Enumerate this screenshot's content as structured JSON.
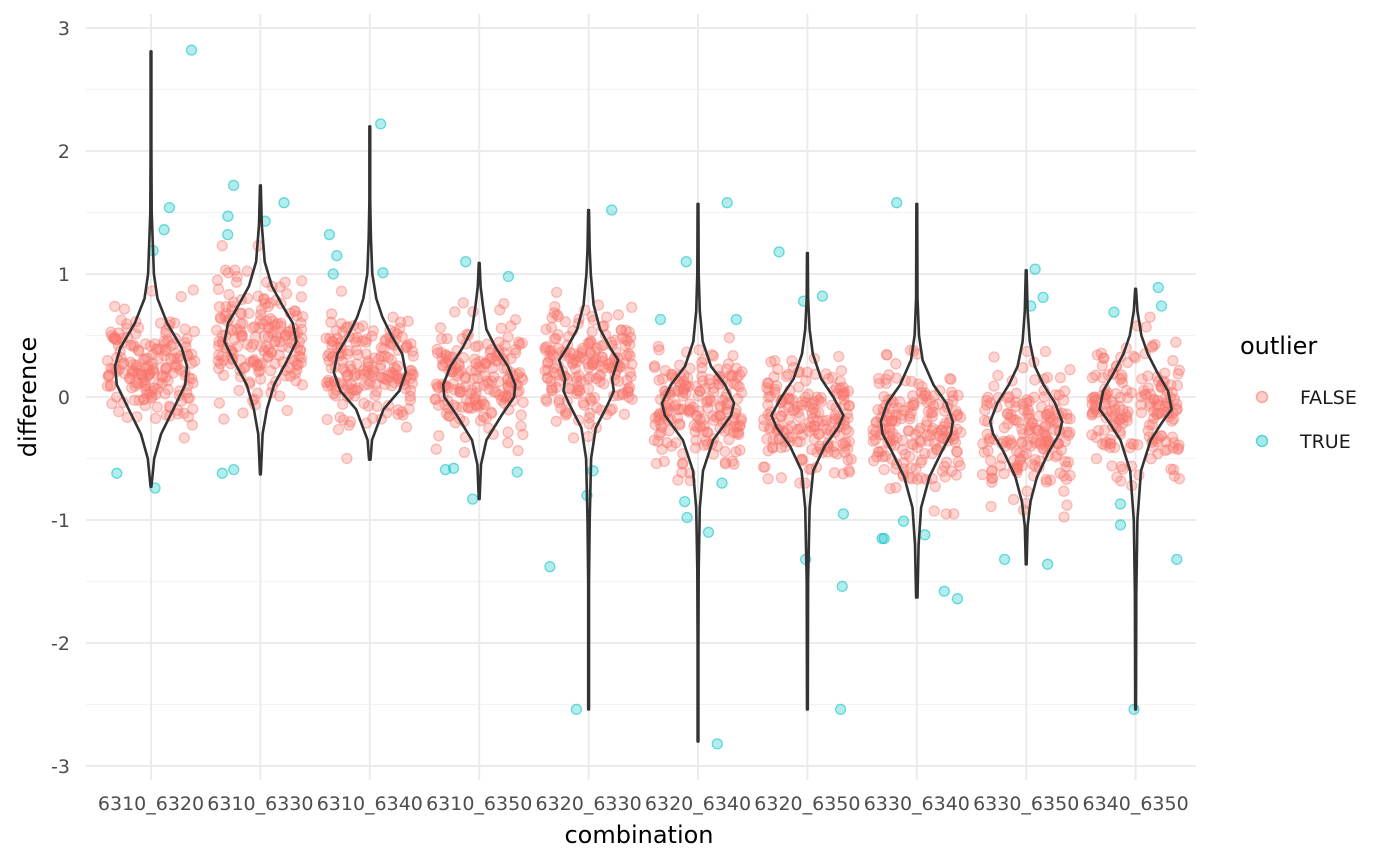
{
  "chart_data": {
    "type": "scatter",
    "subtype": "violin-with-jittered-points",
    "title": "",
    "xlabel": "combination",
    "ylabel": "difference",
    "categories": [
      "6310_6320",
      "6310_6330",
      "6310_6340",
      "6310_6350",
      "6320_6330",
      "6320_6340",
      "6320_6350",
      "6330_6340",
      "6330_6350",
      "6340_6350"
    ],
    "ylim": [
      -3.07,
      3.07
    ],
    "yticks": [
      -3,
      -2,
      -1,
      0,
      1,
      2,
      3
    ],
    "ytick_labels": [
      "-3",
      "-2",
      "-1",
      "0",
      "1",
      "2",
      "3"
    ],
    "grid": true,
    "legend": {
      "title": "outlier",
      "position": "right",
      "entries": [
        {
          "label": "FALSE",
          "color": "#F8766D"
        },
        {
          "label": "TRUE",
          "color": "#00BFC4"
        }
      ]
    },
    "violins": [
      {
        "category": "6310_6320",
        "min": -0.73,
        "max": 2.81,
        "shape": [
          [
            -0.73,
            0.01
          ],
          [
            -0.5,
            0.09
          ],
          [
            -0.3,
            0.28
          ],
          [
            -0.1,
            0.62
          ],
          [
            0.1,
            0.95
          ],
          [
            0.25,
            1.0
          ],
          [
            0.4,
            0.85
          ],
          [
            0.6,
            0.45
          ],
          [
            0.8,
            0.18
          ],
          [
            1.0,
            0.08
          ],
          [
            1.5,
            0.02
          ],
          [
            2.0,
            0.01
          ],
          [
            2.81,
            0.01
          ]
        ]
      },
      {
        "category": "6310_6330",
        "min": -0.63,
        "max": 1.72,
        "shape": [
          [
            -0.63,
            0.01
          ],
          [
            -0.3,
            0.06
          ],
          [
            -0.1,
            0.18
          ],
          [
            0.1,
            0.38
          ],
          [
            0.3,
            0.75
          ],
          [
            0.45,
            1.0
          ],
          [
            0.6,
            0.9
          ],
          [
            0.75,
            0.6
          ],
          [
            0.9,
            0.32
          ],
          [
            1.1,
            0.12
          ],
          [
            1.4,
            0.04
          ],
          [
            1.72,
            0.01
          ]
        ]
      },
      {
        "category": "6310_6340",
        "min": -0.51,
        "max": 2.2,
        "shape": [
          [
            -0.51,
            0.02
          ],
          [
            -0.35,
            0.06
          ],
          [
            -0.1,
            0.38
          ],
          [
            0.05,
            0.82
          ],
          [
            0.2,
            1.0
          ],
          [
            0.35,
            0.9
          ],
          [
            0.5,
            0.6
          ],
          [
            0.65,
            0.35
          ],
          [
            0.8,
            0.18
          ],
          [
            1.0,
            0.07
          ],
          [
            1.3,
            0.03
          ],
          [
            1.6,
            0.01
          ],
          [
            2.2,
            0.01
          ]
        ]
      },
      {
        "category": "6310_6350",
        "min": -0.83,
        "max": 1.09,
        "shape": [
          [
            -0.83,
            0.01
          ],
          [
            -0.55,
            0.05
          ],
          [
            -0.35,
            0.2
          ],
          [
            -0.15,
            0.62
          ],
          [
            0.0,
            0.97
          ],
          [
            0.1,
            1.0
          ],
          [
            0.25,
            0.8
          ],
          [
            0.4,
            0.46
          ],
          [
            0.55,
            0.2
          ],
          [
            0.75,
            0.1
          ],
          [
            0.9,
            0.04
          ],
          [
            1.09,
            0.01
          ]
        ]
      },
      {
        "category": "6320_6330",
        "min": -2.54,
        "max": 1.52,
        "shape": [
          [
            -2.54,
            0.01
          ],
          [
            -1.5,
            0.01
          ],
          [
            -1.0,
            0.03
          ],
          [
            -0.5,
            0.07
          ],
          [
            -0.25,
            0.2
          ],
          [
            -0.05,
            0.55
          ],
          [
            0.05,
            0.7
          ],
          [
            0.15,
            0.65
          ],
          [
            0.3,
            0.82
          ],
          [
            0.4,
            0.6
          ],
          [
            0.55,
            0.32
          ],
          [
            0.75,
            0.14
          ],
          [
            1.0,
            0.06
          ],
          [
            1.2,
            0.03
          ],
          [
            1.52,
            0.01
          ]
        ]
      },
      {
        "category": "6320_6340",
        "min": -2.8,
        "max": 1.57,
        "shape": [
          [
            -2.8,
            0.01
          ],
          [
            -2.0,
            0.01
          ],
          [
            -1.4,
            0.02
          ],
          [
            -0.9,
            0.05
          ],
          [
            -0.6,
            0.14
          ],
          [
            -0.35,
            0.42
          ],
          [
            -0.15,
            0.92
          ],
          [
            -0.05,
            1.0
          ],
          [
            0.1,
            0.75
          ],
          [
            0.25,
            0.36
          ],
          [
            0.45,
            0.13
          ],
          [
            0.7,
            0.05
          ],
          [
            1.0,
            0.02
          ],
          [
            1.57,
            0.01
          ]
        ]
      },
      {
        "category": "6320_6350",
        "min": -2.54,
        "max": 1.17,
        "shape": [
          [
            -2.54,
            0.01
          ],
          [
            -1.5,
            0.02
          ],
          [
            -0.9,
            0.06
          ],
          [
            -0.6,
            0.16
          ],
          [
            -0.4,
            0.48
          ],
          [
            -0.25,
            0.85
          ],
          [
            -0.15,
            1.0
          ],
          [
            0.0,
            0.72
          ],
          [
            0.15,
            0.38
          ],
          [
            0.35,
            0.15
          ],
          [
            0.55,
            0.06
          ],
          [
            0.8,
            0.02
          ],
          [
            1.17,
            0.01
          ]
        ]
      },
      {
        "category": "6330_6340",
        "min": -1.63,
        "max": 1.57,
        "shape": [
          [
            -1.63,
            0.02
          ],
          [
            -1.2,
            0.05
          ],
          [
            -0.9,
            0.12
          ],
          [
            -0.65,
            0.35
          ],
          [
            -0.45,
            0.68
          ],
          [
            -0.3,
            0.95
          ],
          [
            -0.2,
            1.0
          ],
          [
            -0.05,
            0.82
          ],
          [
            0.1,
            0.46
          ],
          [
            0.3,
            0.16
          ],
          [
            0.5,
            0.06
          ],
          [
            0.8,
            0.02
          ],
          [
            1.57,
            0.01
          ]
        ]
      },
      {
        "category": "6330_6350",
        "min": -1.36,
        "max": 1.03,
        "shape": [
          [
            -1.36,
            0.01
          ],
          [
            -1.05,
            0.04
          ],
          [
            -0.85,
            0.12
          ],
          [
            -0.65,
            0.3
          ],
          [
            -0.45,
            0.62
          ],
          [
            -0.3,
            0.92
          ],
          [
            -0.2,
            1.0
          ],
          [
            -0.05,
            0.8
          ],
          [
            0.1,
            0.48
          ],
          [
            0.25,
            0.24
          ],
          [
            0.45,
            0.1
          ],
          [
            0.7,
            0.04
          ],
          [
            1.03,
            0.01
          ]
        ]
      },
      {
        "category": "6340_6350",
        "min": -2.54,
        "max": 0.88,
        "shape": [
          [
            -2.54,
            0.01
          ],
          [
            -1.6,
            0.02
          ],
          [
            -1.0,
            0.05
          ],
          [
            -0.6,
            0.15
          ],
          [
            -0.35,
            0.42
          ],
          [
            -0.2,
            0.75
          ],
          [
            -0.1,
            1.0
          ],
          [
            0.05,
            0.9
          ],
          [
            0.2,
            0.6
          ],
          [
            0.35,
            0.34
          ],
          [
            0.5,
            0.16
          ],
          [
            0.7,
            0.05
          ],
          [
            0.88,
            0.01
          ]
        ]
      }
    ],
    "outlier_points": [
      {
        "category": "6310_6320",
        "values": [
          2.82,
          1.54,
          1.36,
          1.19,
          -0.62,
          -0.74
        ]
      },
      {
        "category": "6310_6330",
        "values": [
          1.72,
          1.58,
          1.47,
          1.43,
          1.32,
          -0.59,
          -0.62
        ]
      },
      {
        "category": "6310_6340",
        "values": [
          2.22,
          1.32,
          1.15,
          1.01,
          1.0
        ]
      },
      {
        "category": "6310_6350",
        "values": [
          1.1,
          0.98,
          -0.58,
          -0.59,
          -0.61,
          -0.83
        ]
      },
      {
        "category": "6320_6330",
        "values": [
          1.52,
          -0.6,
          -0.8,
          -1.38,
          -2.54
        ]
      },
      {
        "category": "6320_6340",
        "values": [
          1.58,
          1.1,
          0.63,
          0.63,
          -0.7,
          -0.85,
          -0.98,
          -1.1,
          -2.82
        ]
      },
      {
        "category": "6320_6350",
        "values": [
          1.18,
          0.82,
          0.78,
          -0.95,
          -1.32,
          -1.54,
          -2.54
        ]
      },
      {
        "category": "6330_6340",
        "values": [
          1.58,
          -1.01,
          -1.12,
          -1.15,
          -1.15,
          -1.58,
          -1.64
        ]
      },
      {
        "category": "6330_6350",
        "values": [
          1.04,
          0.81,
          0.74,
          -1.32,
          -1.36
        ]
      },
      {
        "category": "6340_6350",
        "values": [
          0.89,
          0.74,
          0.69,
          -0.87,
          -1.04,
          -1.32,
          -2.54
        ]
      }
    ],
    "inlier_points": [
      {
        "category": "6310_6320",
        "n": 180,
        "center": 0.25,
        "sd": 0.24,
        "min": -0.5,
        "max": 0.87
      },
      {
        "category": "6310_6330",
        "n": 185,
        "center": 0.5,
        "sd": 0.26,
        "min": -0.18,
        "max": 1.23
      },
      {
        "category": "6310_6340",
        "n": 180,
        "center": 0.22,
        "sd": 0.22,
        "min": -0.5,
        "max": 0.86
      },
      {
        "category": "6310_6350",
        "n": 185,
        "center": 0.12,
        "sd": 0.24,
        "min": -0.45,
        "max": 0.82
      },
      {
        "category": "6320_6330",
        "n": 190,
        "center": 0.22,
        "sd": 0.26,
        "min": -0.45,
        "max": 1.2
      },
      {
        "category": "6320_6340",
        "n": 195,
        "center": -0.08,
        "sd": 0.24,
        "min": -0.68,
        "max": 0.58
      },
      {
        "category": "6320_6350",
        "n": 185,
        "center": -0.2,
        "sd": 0.24,
        "min": -0.7,
        "max": 0.65
      },
      {
        "category": "6330_6340",
        "n": 185,
        "center": -0.25,
        "sd": 0.24,
        "min": -0.95,
        "max": 0.51
      },
      {
        "category": "6330_6350",
        "n": 180,
        "center": -0.3,
        "sd": 0.26,
        "min": -1.25,
        "max": 0.37
      },
      {
        "category": "6340_6350",
        "n": 185,
        "center": -0.05,
        "sd": 0.24,
        "min": -0.72,
        "max": 0.65
      }
    ]
  }
}
